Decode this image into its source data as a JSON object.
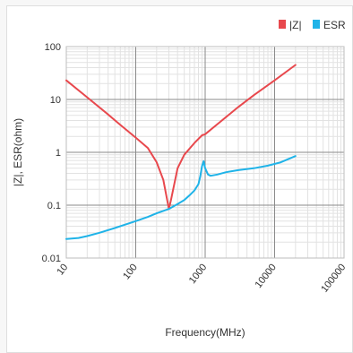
{
  "chart_data": {
    "type": "line",
    "xlabel": "Frequency(MHz)",
    "ylabel": "|Z|, ESR(ohm)",
    "x_scale": "log",
    "y_scale": "log",
    "xlim": [
      10,
      100000
    ],
    "ylim": [
      0.01,
      100
    ],
    "x_ticks": [
      "10",
      "100",
      "1000",
      "10000",
      "100000"
    ],
    "y_ticks": [
      "100",
      "10",
      "1",
      "0.1",
      "0.01"
    ],
    "grid": true,
    "legend_position": "top-right",
    "series": [
      {
        "name": "|Z|",
        "color": "#e8484d",
        "x": [
          10,
          20,
          40,
          60,
          100,
          150,
          200,
          250,
          300,
          320,
          400,
          500,
          700,
          900,
          1000,
          1500,
          3000,
          5000,
          10000,
          20000
        ],
        "y": [
          23,
          11,
          5.2,
          3.3,
          1.9,
          1.2,
          0.65,
          0.3,
          0.085,
          0.12,
          0.5,
          0.9,
          1.5,
          2.1,
          2.2,
          3.4,
          7.2,
          12,
          23,
          45
        ]
      },
      {
        "name": "ESR",
        "color": "#1fb3e8",
        "x": [
          10,
          15,
          20,
          30,
          50,
          100,
          150,
          200,
          300,
          400,
          500,
          600,
          700,
          800,
          850,
          900,
          950,
          1000,
          1100,
          1200,
          1500,
          2000,
          3000,
          5000,
          8000,
          12000,
          20000
        ],
        "y": [
          0.023,
          0.024,
          0.026,
          0.03,
          0.037,
          0.05,
          0.06,
          0.07,
          0.085,
          0.105,
          0.125,
          0.155,
          0.19,
          0.25,
          0.35,
          0.55,
          0.68,
          0.5,
          0.38,
          0.36,
          0.38,
          0.42,
          0.46,
          0.5,
          0.56,
          0.64,
          0.85
        ]
      }
    ]
  }
}
